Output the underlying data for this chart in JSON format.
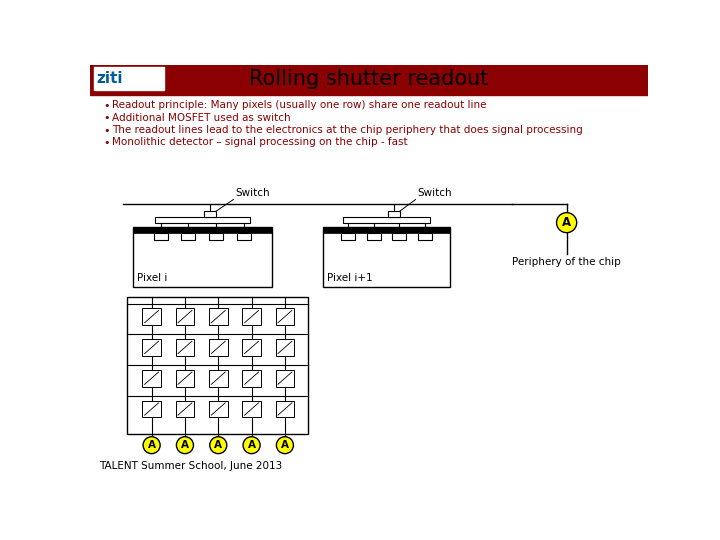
{
  "title": "Rolling shutter readout",
  "header_bar_color": "#8B0000",
  "bg_color": "#FFFFFF",
  "bullet_color": "#8B0000",
  "bullet_text_color": "#8B0000",
  "bullets": [
    "Readout principle: Many pixels (usually one row) share one readout line",
    "Additional MOSFET used as switch",
    "The readout lines lead to the electronics at the chip periphery that does signal processing",
    "Monolithic detector – signal processing on the chip - fast"
  ],
  "footer_text": "TALENT Summer School, June 2013",
  "pixel_i_label": "Pixel i",
  "pixel_i1_label": "Pixel i+1",
  "switch_label": "Switch",
  "periphery_label": "Periphery of the chip",
  "amplifier_label": "A",
  "amp_color": "#FFFF00"
}
